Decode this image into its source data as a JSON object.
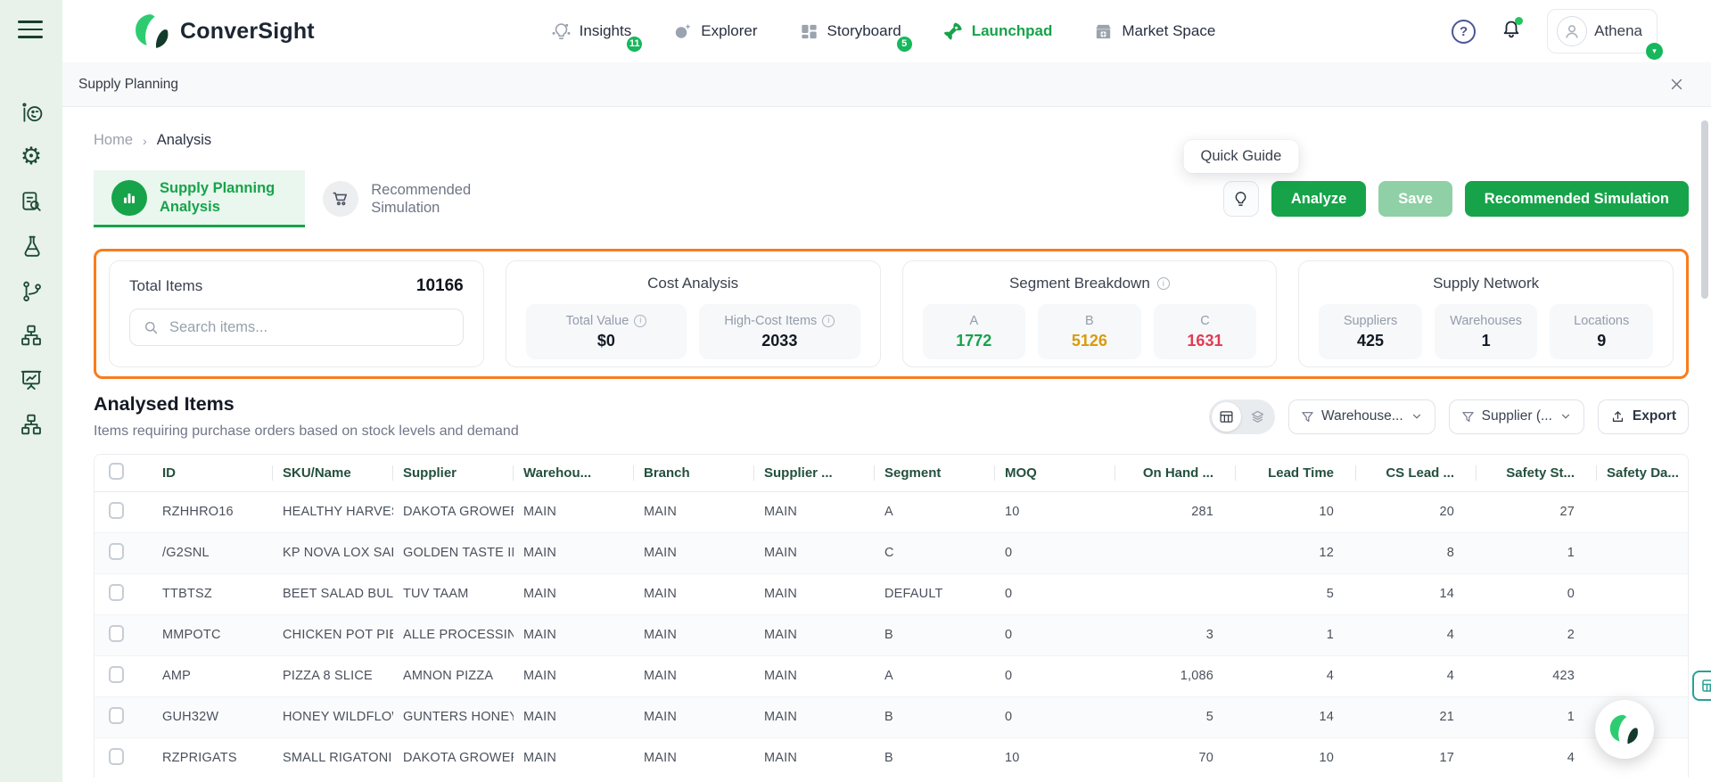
{
  "app": {
    "brand": "ConverSight"
  },
  "navbar": {
    "items": [
      {
        "label": "Insights",
        "badge": "11"
      },
      {
        "label": "Explorer"
      },
      {
        "label": "Storyboard",
        "badge": "5"
      },
      {
        "label": "Launchpad"
      },
      {
        "label": "Market Space"
      }
    ],
    "user": {
      "name": "Athena"
    }
  },
  "workspace_bar": {
    "title": "Supply Planning"
  },
  "breadcrumb": {
    "home": "Home",
    "current": "Analysis"
  },
  "tabs": [
    {
      "line1": "Supply Planning",
      "line2": "Analysis",
      "active": true
    },
    {
      "line1": "Recommended",
      "line2": "Simulation",
      "active": false
    }
  ],
  "actions": {
    "tooltip": "Quick Guide",
    "analyze": "Analyze",
    "save": "Save",
    "recommended_simulation": "Recommended Simulation"
  },
  "summary_cards": {
    "total_items": {
      "title": "Total Items",
      "value": "10166",
      "search_placeholder": "Search items..."
    },
    "cost_analysis": {
      "title": "Cost Analysis",
      "metrics": [
        {
          "label": "Total Value",
          "value": "$0"
        },
        {
          "label": "High-Cost Items",
          "value": "2033"
        }
      ]
    },
    "segment_breakdown": {
      "title": "Segment Breakdown",
      "metrics": [
        {
          "label": "A",
          "value": "1772",
          "color": "#17a34a"
        },
        {
          "label": "B",
          "value": "5126",
          "color": "#d99b0b"
        },
        {
          "label": "C",
          "value": "1631",
          "color": "#e23b52"
        }
      ]
    },
    "supply_network": {
      "title": "Supply Network",
      "metrics": [
        {
          "label": "Suppliers",
          "value": "425"
        },
        {
          "label": "Warehouses",
          "value": "1"
        },
        {
          "label": "Locations",
          "value": "9"
        }
      ]
    }
  },
  "analysed_items": {
    "title": "Analysed Items",
    "subtitle": "Items requiring purchase orders based on stock levels and demand",
    "filters": {
      "warehouse": "Warehouse...",
      "supplier": "Supplier (...",
      "export": "Export"
    }
  },
  "table": {
    "columns": [
      {
        "key": "id",
        "label": "ID"
      },
      {
        "key": "sku",
        "label": "SKU/Name"
      },
      {
        "key": "supplier",
        "label": "Supplier"
      },
      {
        "key": "warehouse",
        "label": "Warehou..."
      },
      {
        "key": "branch",
        "label": "Branch"
      },
      {
        "key": "supplier2",
        "label": "Supplier ..."
      },
      {
        "key": "segment",
        "label": "Segment"
      },
      {
        "key": "moq",
        "label": "MOQ"
      },
      {
        "key": "onhand",
        "label": "On Hand ...",
        "align": "right"
      },
      {
        "key": "leadtime",
        "label": "Lead Time",
        "align": "right"
      },
      {
        "key": "cslead",
        "label": "CS Lead ...",
        "align": "right"
      },
      {
        "key": "safetyst",
        "label": "Safety St...",
        "align": "right"
      },
      {
        "key": "safetyda",
        "label": "Safety Da..."
      }
    ],
    "rows": [
      {
        "id": "RZHHRO16",
        "sku": "HEALTHY HARVEST",
        "supplier": "DAKOTA GROWER",
        "warehouse": "MAIN",
        "branch": "MAIN",
        "supplier2": "MAIN",
        "segment": "A",
        "moq": "10",
        "onhand": "281",
        "leadtime": "10",
        "cslead": "20",
        "safetyst": "27",
        "safetyda": ""
      },
      {
        "id": "/G2SNL",
        "sku": "KP NOVA LOX SAL",
        "supplier": "GOLDEN TASTE IN",
        "warehouse": "MAIN",
        "branch": "MAIN",
        "supplier2": "MAIN",
        "segment": "C",
        "moq": "0",
        "onhand": "",
        "leadtime": "12",
        "cslead": "8",
        "safetyst": "1",
        "safetyda": ""
      },
      {
        "id": "TTBTSZ",
        "sku": "BEET SALAD BULK",
        "supplier": "TUV TAAM",
        "warehouse": "MAIN",
        "branch": "MAIN",
        "supplier2": "MAIN",
        "segment": "DEFAULT",
        "moq": "0",
        "onhand": "",
        "leadtime": "5",
        "cslead": "14",
        "safetyst": "0",
        "safetyda": ""
      },
      {
        "id": "MMPOTC",
        "sku": "CHICKEN POT PIE",
        "supplier": "ALLE PROCESSING",
        "warehouse": "MAIN",
        "branch": "MAIN",
        "supplier2": "MAIN",
        "segment": "B",
        "moq": "0",
        "onhand": "3",
        "leadtime": "1",
        "cslead": "4",
        "safetyst": "2",
        "safetyda": ""
      },
      {
        "id": "AMP",
        "sku": "PIZZA 8 SLICE",
        "supplier": "AMNON PIZZA",
        "warehouse": "MAIN",
        "branch": "MAIN",
        "supplier2": "MAIN",
        "segment": "A",
        "moq": "0",
        "onhand": "1,086",
        "leadtime": "4",
        "cslead": "4",
        "safetyst": "423",
        "safetyda": ""
      },
      {
        "id": "GUH32W",
        "sku": "HONEY WILDFLOW",
        "supplier": "GUNTERS HONEY",
        "warehouse": "MAIN",
        "branch": "MAIN",
        "supplier2": "MAIN",
        "segment": "B",
        "moq": "0",
        "onhand": "5",
        "leadtime": "14",
        "cslead": "21",
        "safetyst": "1",
        "safetyda": ""
      },
      {
        "id": "RZPRIGATS",
        "sku": "SMALL RIGATONI",
        "supplier": "DAKOTA GROWER",
        "warehouse": "MAIN",
        "branch": "MAIN",
        "supplier2": "MAIN",
        "segment": "B",
        "moq": "10",
        "onhand": "70",
        "leadtime": "10",
        "cslead": "17",
        "safetyst": "4",
        "safetyda": ""
      }
    ]
  },
  "colors": {
    "accent_green": "#17a34a",
    "highlight_orange": "#f97c1d",
    "badge_green": "#17b75d",
    "segment_a": "#17a34a",
    "segment_b": "#d99b0b",
    "segment_c": "#e23b52"
  },
  "icons": [
    "menu-icon",
    "operations-icon",
    "gear-icon",
    "document-search-icon",
    "flask-icon",
    "git-branch-icon",
    "sitemap-icon",
    "presentation-chart-icon",
    "insights-bulb-icon",
    "explorer-icon",
    "storyboard-icon",
    "rocket-icon",
    "market-space-icon",
    "help-icon",
    "bell-icon",
    "avatar-icon",
    "close-icon",
    "search-icon",
    "info-icon",
    "table-view-icon",
    "layers-view-icon",
    "filter-icon",
    "chevron-down-icon",
    "export-icon",
    "cart-icon",
    "bar-chart-icon",
    "lightbulb-icon",
    "chat-logo-icon",
    "grid-widget-icon"
  ]
}
